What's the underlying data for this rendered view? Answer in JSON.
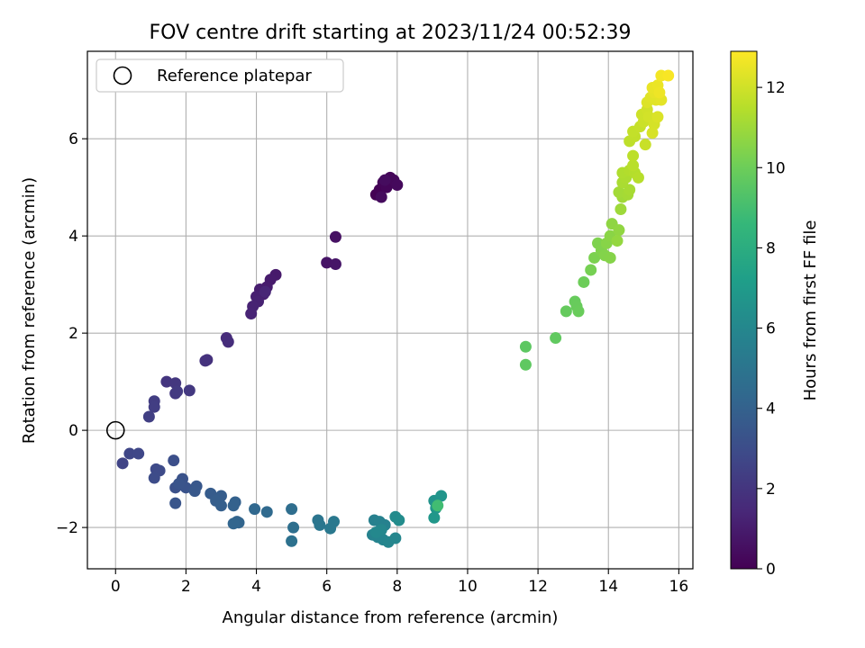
{
  "chart_data": {
    "type": "scatter",
    "title": "FOV centre drift starting at 2023/11/24 00:52:39",
    "xlabel": "Angular distance from reference (arcmin)",
    "ylabel": "Rotation from reference (arcmin)",
    "xlim": [
      -0.8,
      16.4
    ],
    "ylim": [
      -2.85,
      7.8
    ],
    "xticks": [
      0,
      2,
      4,
      6,
      8,
      10,
      12,
      14,
      16
    ],
    "yticks": [
      -2,
      0,
      2,
      4,
      6
    ],
    "grid": true,
    "legend": {
      "placement": "top-left",
      "entries": [
        "Reference platepar"
      ]
    },
    "reference_point": {
      "x": 0,
      "y": 0
    },
    "colorbar": {
      "label": "Hours from first FF file",
      "min": 0,
      "max": 12.9,
      "ticks": [
        0,
        2,
        4,
        6,
        8,
        10,
        12
      ],
      "colormap": "viridis"
    },
    "points": [
      {
        "x": 7.4,
        "y": 4.85,
        "h": 0.0
      },
      {
        "x": 7.5,
        "y": 4.95,
        "h": 0.05
      },
      {
        "x": 7.6,
        "y": 5.1,
        "h": 0.1
      },
      {
        "x": 7.7,
        "y": 5.0,
        "h": 0.15
      },
      {
        "x": 7.8,
        "y": 5.2,
        "h": 0.2
      },
      {
        "x": 7.9,
        "y": 5.15,
        "h": 0.25
      },
      {
        "x": 8.0,
        "y": 5.05,
        "h": 0.3
      },
      {
        "x": 7.55,
        "y": 4.8,
        "h": 0.35
      },
      {
        "x": 7.65,
        "y": 5.15,
        "h": 0.4
      },
      {
        "x": 6.25,
        "y": 3.98,
        "h": 0.6
      },
      {
        "x": 6.0,
        "y": 3.45,
        "h": 0.7
      },
      {
        "x": 6.25,
        "y": 3.42,
        "h": 0.75
      },
      {
        "x": 4.55,
        "y": 3.2,
        "h": 0.9
      },
      {
        "x": 4.4,
        "y": 3.1,
        "h": 0.95
      },
      {
        "x": 4.3,
        "y": 2.95,
        "h": 1.0
      },
      {
        "x": 4.1,
        "y": 2.9,
        "h": 1.05
      },
      {
        "x": 4.2,
        "y": 2.8,
        "h": 1.1
      },
      {
        "x": 4.0,
        "y": 2.75,
        "h": 1.15
      },
      {
        "x": 4.05,
        "y": 2.65,
        "h": 1.2
      },
      {
        "x": 3.9,
        "y": 2.55,
        "h": 1.25
      },
      {
        "x": 3.85,
        "y": 2.4,
        "h": 1.3
      },
      {
        "x": 4.25,
        "y": 2.85,
        "h": 1.35
      },
      {
        "x": 3.15,
        "y": 1.9,
        "h": 1.6
      },
      {
        "x": 3.2,
        "y": 1.82,
        "h": 1.65
      },
      {
        "x": 2.6,
        "y": 1.45,
        "h": 1.8
      },
      {
        "x": 2.55,
        "y": 1.43,
        "h": 1.85
      },
      {
        "x": 1.45,
        "y": 1.0,
        "h": 2.0
      },
      {
        "x": 1.7,
        "y": 0.97,
        "h": 2.05
      },
      {
        "x": 2.1,
        "y": 0.82,
        "h": 2.1
      },
      {
        "x": 1.7,
        "y": 0.76,
        "h": 2.15
      },
      {
        "x": 1.75,
        "y": 0.8,
        "h": 2.2
      },
      {
        "x": 1.1,
        "y": 0.6,
        "h": 2.3
      },
      {
        "x": 1.1,
        "y": 0.48,
        "h": 2.35
      },
      {
        "x": 0.95,
        "y": 0.28,
        "h": 2.4
      },
      {
        "x": 0.2,
        "y": -0.68,
        "h": 2.6
      },
      {
        "x": 0.4,
        "y": -0.48,
        "h": 2.7
      },
      {
        "x": 0.65,
        "y": -0.48,
        "h": 2.75
      },
      {
        "x": 1.15,
        "y": -0.8,
        "h": 2.85
      },
      {
        "x": 1.25,
        "y": -0.83,
        "h": 2.9
      },
      {
        "x": 1.1,
        "y": -0.98,
        "h": 2.95
      },
      {
        "x": 1.65,
        "y": -0.62,
        "h": 3.1
      },
      {
        "x": 1.7,
        "y": -1.18,
        "h": 3.2
      },
      {
        "x": 1.9,
        "y": -1.0,
        "h": 3.25
      },
      {
        "x": 2.0,
        "y": -1.18,
        "h": 3.3
      },
      {
        "x": 1.8,
        "y": -1.1,
        "h": 3.35
      },
      {
        "x": 1.7,
        "y": -1.5,
        "h": 3.4
      },
      {
        "x": 2.3,
        "y": -1.15,
        "h": 3.5
      },
      {
        "x": 2.25,
        "y": -1.25,
        "h": 3.55
      },
      {
        "x": 2.7,
        "y": -1.3,
        "h": 3.7
      },
      {
        "x": 3.0,
        "y": -1.35,
        "h": 3.75
      },
      {
        "x": 2.85,
        "y": -1.45,
        "h": 3.8
      },
      {
        "x": 3.0,
        "y": -1.55,
        "h": 3.85
      },
      {
        "x": 3.4,
        "y": -1.48,
        "h": 3.95
      },
      {
        "x": 3.35,
        "y": -1.55,
        "h": 4.0
      },
      {
        "x": 3.45,
        "y": -1.88,
        "h": 4.1
      },
      {
        "x": 3.5,
        "y": -1.9,
        "h": 4.15
      },
      {
        "x": 3.35,
        "y": -1.92,
        "h": 4.2
      },
      {
        "x": 3.95,
        "y": -1.62,
        "h": 4.3
      },
      {
        "x": 4.3,
        "y": -1.68,
        "h": 4.4
      },
      {
        "x": 5.0,
        "y": -1.62,
        "h": 4.6
      },
      {
        "x": 5.05,
        "y": -2.0,
        "h": 4.7
      },
      {
        "x": 5.0,
        "y": -2.28,
        "h": 4.8
      },
      {
        "x": 5.75,
        "y": -1.85,
        "h": 5.0
      },
      {
        "x": 5.8,
        "y": -1.95,
        "h": 5.05
      },
      {
        "x": 6.2,
        "y": -1.88,
        "h": 5.15
      },
      {
        "x": 6.1,
        "y": -2.02,
        "h": 5.2
      },
      {
        "x": 7.35,
        "y": -1.85,
        "h": 5.6
      },
      {
        "x": 7.5,
        "y": -1.88,
        "h": 5.65
      },
      {
        "x": 7.65,
        "y": -1.95,
        "h": 5.7
      },
      {
        "x": 7.3,
        "y": -2.15,
        "h": 5.75
      },
      {
        "x": 7.45,
        "y": -2.2,
        "h": 5.8
      },
      {
        "x": 7.6,
        "y": -2.25,
        "h": 5.85
      },
      {
        "x": 7.75,
        "y": -2.3,
        "h": 5.9
      },
      {
        "x": 7.95,
        "y": -2.22,
        "h": 5.95
      },
      {
        "x": 7.55,
        "y": -2.05,
        "h": 6.0
      },
      {
        "x": 7.4,
        "y": -2.1,
        "h": 6.05
      },
      {
        "x": 7.95,
        "y": -1.78,
        "h": 6.2
      },
      {
        "x": 8.05,
        "y": -1.85,
        "h": 6.25
      },
      {
        "x": 9.05,
        "y": -1.45,
        "h": 6.6
      },
      {
        "x": 9.25,
        "y": -1.35,
        "h": 6.7
      },
      {
        "x": 9.1,
        "y": -1.6,
        "h": 6.75
      },
      {
        "x": 9.05,
        "y": -1.8,
        "h": 6.8
      },
      {
        "x": 9.15,
        "y": -1.55,
        "h": 8.9
      },
      {
        "x": 11.65,
        "y": 1.72,
        "h": 9.6
      },
      {
        "x": 11.65,
        "y": 1.35,
        "h": 9.65
      },
      {
        "x": 12.5,
        "y": 1.9,
        "h": 9.7
      },
      {
        "x": 12.8,
        "y": 2.45,
        "h": 9.8
      },
      {
        "x": 13.05,
        "y": 2.65,
        "h": 9.85
      },
      {
        "x": 13.1,
        "y": 2.55,
        "h": 9.88
      },
      {
        "x": 13.15,
        "y": 2.45,
        "h": 9.9
      },
      {
        "x": 13.3,
        "y": 3.05,
        "h": 10.0
      },
      {
        "x": 13.5,
        "y": 3.3,
        "h": 10.2
      },
      {
        "x": 13.6,
        "y": 3.55,
        "h": 10.3
      },
      {
        "x": 13.7,
        "y": 3.85,
        "h": 10.35
      },
      {
        "x": 13.8,
        "y": 3.7,
        "h": 10.4
      },
      {
        "x": 13.9,
        "y": 3.6,
        "h": 10.45
      },
      {
        "x": 14.05,
        "y": 3.55,
        "h": 10.5
      },
      {
        "x": 13.95,
        "y": 3.85,
        "h": 10.55
      },
      {
        "x": 14.05,
        "y": 4.0,
        "h": 10.6
      },
      {
        "x": 14.1,
        "y": 4.25,
        "h": 10.7
      },
      {
        "x": 14.3,
        "y": 4.12,
        "h": 10.75
      },
      {
        "x": 14.25,
        "y": 3.9,
        "h": 10.8
      },
      {
        "x": 14.35,
        "y": 4.55,
        "h": 11.0
      },
      {
        "x": 14.4,
        "y": 4.8,
        "h": 11.05
      },
      {
        "x": 14.3,
        "y": 4.9,
        "h": 11.1
      },
      {
        "x": 14.55,
        "y": 4.85,
        "h": 11.15
      },
      {
        "x": 14.6,
        "y": 4.95,
        "h": 11.2
      },
      {
        "x": 14.4,
        "y": 5.1,
        "h": 11.25
      },
      {
        "x": 14.5,
        "y": 5.2,
        "h": 11.3
      },
      {
        "x": 14.4,
        "y": 5.3,
        "h": 11.35
      },
      {
        "x": 14.6,
        "y": 5.35,
        "h": 11.4
      },
      {
        "x": 14.75,
        "y": 5.3,
        "h": 11.45
      },
      {
        "x": 14.85,
        "y": 5.2,
        "h": 11.5
      },
      {
        "x": 14.7,
        "y": 5.45,
        "h": 11.55
      },
      {
        "x": 14.7,
        "y": 5.65,
        "h": 11.6
      },
      {
        "x": 14.6,
        "y": 5.95,
        "h": 11.65
      },
      {
        "x": 14.75,
        "y": 6.05,
        "h": 11.7
      },
      {
        "x": 14.7,
        "y": 6.15,
        "h": 11.75
      },
      {
        "x": 14.9,
        "y": 6.25,
        "h": 11.8
      },
      {
        "x": 15.05,
        "y": 5.88,
        "h": 11.85
      },
      {
        "x": 15.0,
        "y": 6.35,
        "h": 11.9
      },
      {
        "x": 14.95,
        "y": 6.5,
        "h": 11.95
      },
      {
        "x": 15.1,
        "y": 6.6,
        "h": 12.0
      },
      {
        "x": 15.15,
        "y": 6.45,
        "h": 12.05
      },
      {
        "x": 15.3,
        "y": 6.3,
        "h": 12.1
      },
      {
        "x": 15.25,
        "y": 6.12,
        "h": 12.15
      },
      {
        "x": 15.4,
        "y": 6.45,
        "h": 12.2
      },
      {
        "x": 15.1,
        "y": 6.75,
        "h": 12.25
      },
      {
        "x": 15.2,
        "y": 6.85,
        "h": 12.3
      },
      {
        "x": 15.35,
        "y": 6.8,
        "h": 12.35
      },
      {
        "x": 15.5,
        "y": 6.8,
        "h": 12.4
      },
      {
        "x": 15.3,
        "y": 6.95,
        "h": 12.45
      },
      {
        "x": 15.25,
        "y": 7.05,
        "h": 12.5
      },
      {
        "x": 15.4,
        "y": 7.1,
        "h": 12.55
      },
      {
        "x": 15.45,
        "y": 6.95,
        "h": 12.6
      },
      {
        "x": 15.5,
        "y": 7.3,
        "h": 12.7
      },
      {
        "x": 15.7,
        "y": 7.3,
        "h": 12.8
      }
    ]
  }
}
